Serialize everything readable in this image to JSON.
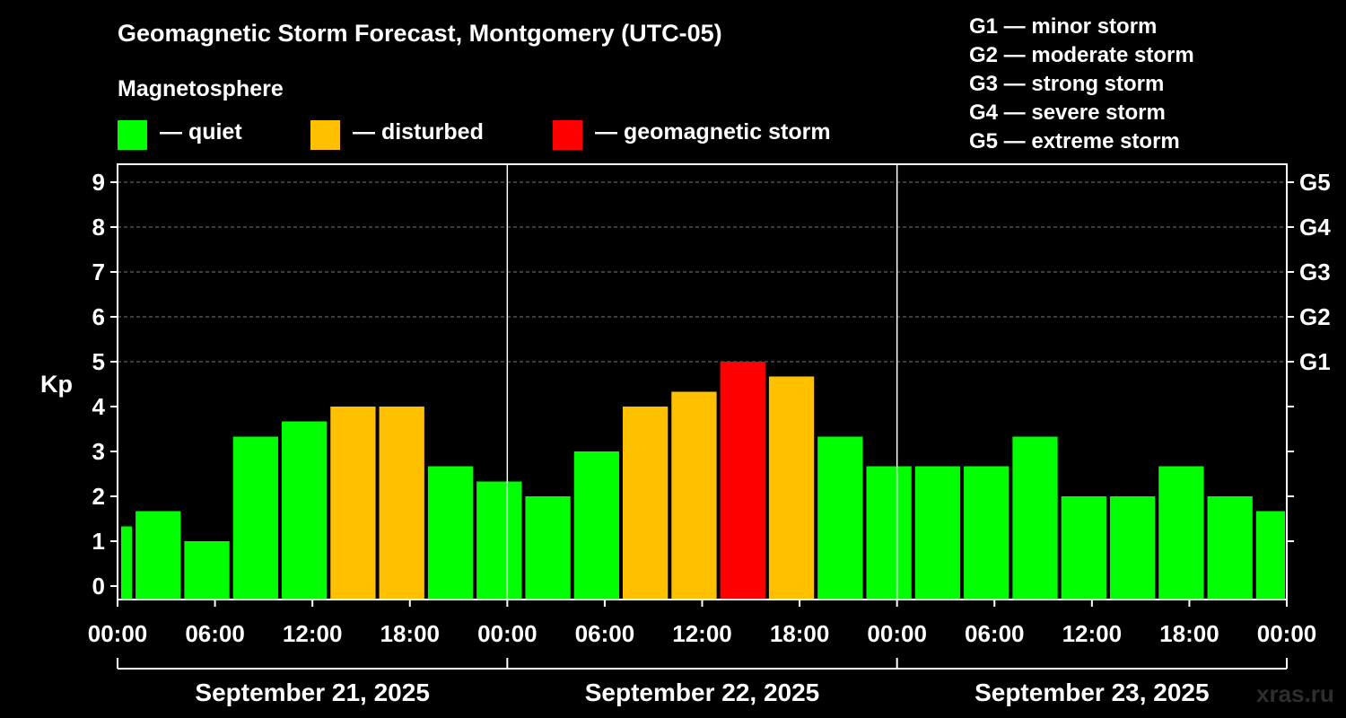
{
  "header": {
    "title": "Geomagnetic Storm Forecast, Montgomery (UTC-05)",
    "subtitle": "Magnetosphere"
  },
  "legend": [
    {
      "label": "— quiet",
      "color": "#00ff00"
    },
    {
      "label": "— disturbed",
      "color": "#ffc000"
    },
    {
      "label": "— geomagnetic storm",
      "color": "#ff0000"
    }
  ],
  "storm_levels": [
    "G1 — minor storm",
    "G2 — moderate storm",
    "G3 — strong storm",
    "G4 — severe storm",
    "G5 — extreme storm"
  ],
  "watermark": "xras.ru",
  "chart_data": {
    "type": "bar",
    "title": "Geomagnetic Storm Forecast, Montgomery (UTC-05)",
    "ylabel": "Kp",
    "ylim": [
      -0.3,
      9.4
    ],
    "yticks": [
      "0",
      "1",
      "2",
      "3",
      "4",
      "5",
      "6",
      "7",
      "8",
      "9"
    ],
    "right_ticks": [
      {
        "kp": 5,
        "label": "G1"
      },
      {
        "kp": 6,
        "label": "G2"
      },
      {
        "kp": 7,
        "label": "G3"
      },
      {
        "kp": 8,
        "label": "G4"
      },
      {
        "kp": 9,
        "label": "G5"
      }
    ],
    "xlim_hours": [
      0,
      72
    ],
    "xtick_labels": [
      "00:00",
      "06:00",
      "12:00",
      "18:00",
      "00:00",
      "06:00",
      "12:00",
      "18:00",
      "00:00",
      "06:00",
      "12:00",
      "18:00",
      "00:00"
    ],
    "days": [
      "September 21, 2025",
      "September 22, 2025",
      "September 23, 2025"
    ],
    "bars": [
      {
        "start_hour": 0,
        "end_hour": 1,
        "kp": 1.33,
        "level": "quiet"
      },
      {
        "start_hour": 1,
        "end_hour": 4,
        "kp": 1.67,
        "level": "quiet"
      },
      {
        "start_hour": 4,
        "end_hour": 7,
        "kp": 1.0,
        "level": "quiet"
      },
      {
        "start_hour": 7,
        "end_hour": 10,
        "kp": 3.33,
        "level": "quiet"
      },
      {
        "start_hour": 10,
        "end_hour": 13,
        "kp": 3.67,
        "level": "quiet"
      },
      {
        "start_hour": 13,
        "end_hour": 16,
        "kp": 4.0,
        "level": "disturbed"
      },
      {
        "start_hour": 16,
        "end_hour": 19,
        "kp": 4.0,
        "level": "disturbed"
      },
      {
        "start_hour": 19,
        "end_hour": 22,
        "kp": 2.67,
        "level": "quiet"
      },
      {
        "start_hour": 22,
        "end_hour": 25,
        "kp": 2.33,
        "level": "quiet"
      },
      {
        "start_hour": 25,
        "end_hour": 28,
        "kp": 2.0,
        "level": "quiet"
      },
      {
        "start_hour": 28,
        "end_hour": 31,
        "kp": 3.0,
        "level": "quiet"
      },
      {
        "start_hour": 31,
        "end_hour": 34,
        "kp": 4.0,
        "level": "disturbed"
      },
      {
        "start_hour": 34,
        "end_hour": 37,
        "kp": 4.33,
        "level": "disturbed"
      },
      {
        "start_hour": 37,
        "end_hour": 40,
        "kp": 5.0,
        "level": "storm"
      },
      {
        "start_hour": 40,
        "end_hour": 43,
        "kp": 4.67,
        "level": "disturbed"
      },
      {
        "start_hour": 43,
        "end_hour": 46,
        "kp": 3.33,
        "level": "quiet"
      },
      {
        "start_hour": 46,
        "end_hour": 49,
        "kp": 2.67,
        "level": "quiet"
      },
      {
        "start_hour": 49,
        "end_hour": 52,
        "kp": 2.67,
        "level": "quiet"
      },
      {
        "start_hour": 52,
        "end_hour": 55,
        "kp": 2.67,
        "level": "quiet"
      },
      {
        "start_hour": 55,
        "end_hour": 58,
        "kp": 3.33,
        "level": "quiet"
      },
      {
        "start_hour": 58,
        "end_hour": 61,
        "kp": 2.0,
        "level": "quiet"
      },
      {
        "start_hour": 61,
        "end_hour": 64,
        "kp": 2.0,
        "level": "quiet"
      },
      {
        "start_hour": 64,
        "end_hour": 67,
        "kp": 2.67,
        "level": "quiet"
      },
      {
        "start_hour": 67,
        "end_hour": 70,
        "kp": 2.0,
        "level": "quiet"
      },
      {
        "start_hour": 70,
        "end_hour": 72,
        "kp": 1.67,
        "level": "quiet"
      }
    ],
    "colors": {
      "quiet": "#00ff00",
      "disturbed": "#ffc000",
      "storm": "#ff0000",
      "grid": "#777777",
      "axis": "#ffffff"
    }
  }
}
